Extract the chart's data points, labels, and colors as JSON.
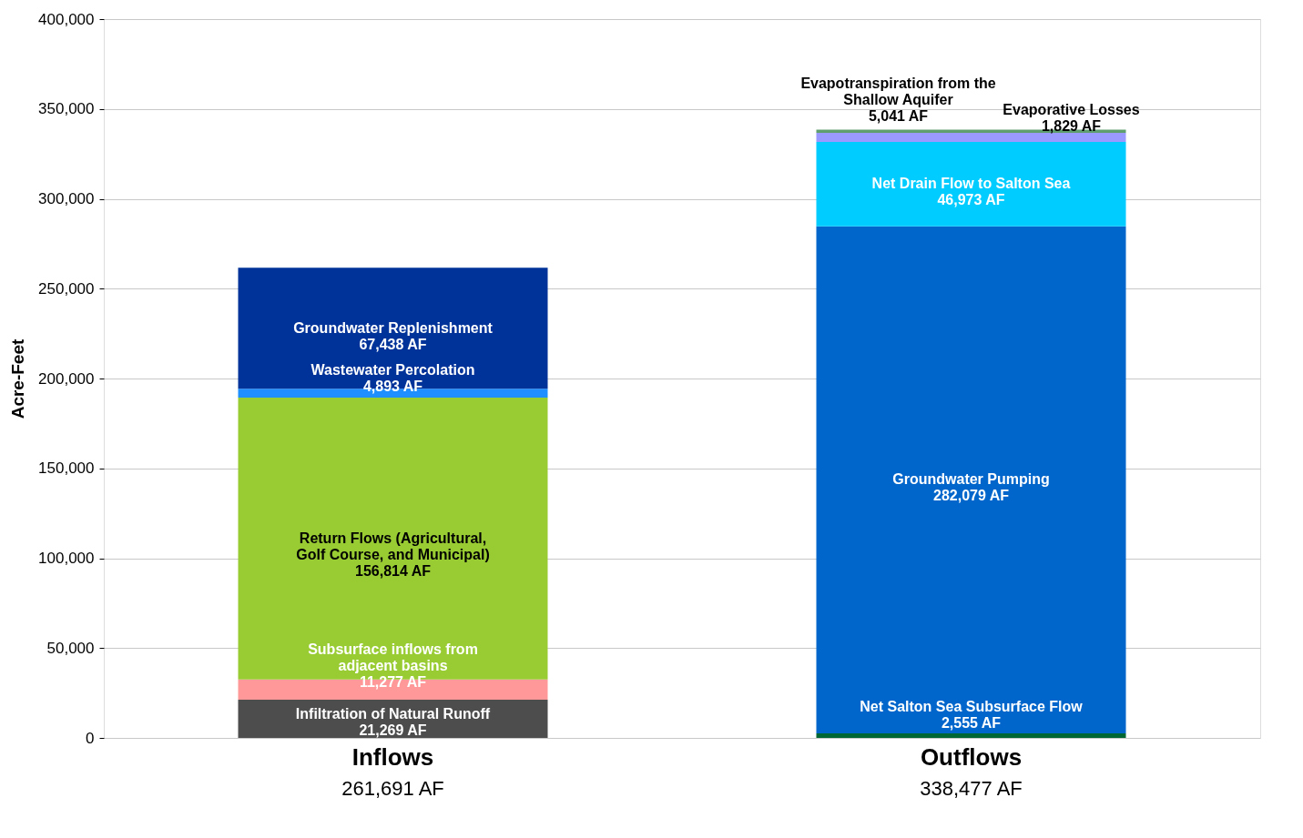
{
  "chart_data": {
    "type": "bar",
    "stacked": true,
    "ylabel": "Acre-Feet",
    "categories": [
      "Inflows",
      "Outflows"
    ],
    "totals": [
      "261,691 AF",
      "338,477 AF"
    ],
    "series": [
      {
        "name": "Infiltration of Natural Runoff",
        "color": "#4d4d4d",
        "values": [
          21269,
          null
        ],
        "value_labels": [
          "21,269 AF",
          null
        ]
      },
      {
        "name": "Subsurface inflows from adjacent basins",
        "color": "#ff9999",
        "values": [
          11277,
          null
        ],
        "value_labels": [
          "11,277 AF",
          null
        ]
      },
      {
        "name": "Return Flows (Agricultural, Golf Course, and Municipal)",
        "color": "#99cc33",
        "values": [
          156814,
          null
        ],
        "value_labels": [
          "156,814 AF",
          null
        ]
      },
      {
        "name": "Wastewater Percolation",
        "color": "#1f8fff",
        "values": [
          4893,
          null
        ],
        "value_labels": [
          "4,893 AF",
          null
        ]
      },
      {
        "name": "Groundwater Replenishment",
        "color": "#003399",
        "values": [
          67438,
          null
        ],
        "value_labels": [
          "67,438 AF",
          null
        ]
      },
      {
        "name": "Net Salton Sea Subsurface Flow",
        "color": "#006633",
        "values": [
          null,
          2555
        ],
        "value_labels": [
          null,
          "2,555 AF"
        ]
      },
      {
        "name": "Groundwater Pumping",
        "color": "#0066cc",
        "values": [
          null,
          282079
        ],
        "value_labels": [
          null,
          "282,079 AF"
        ]
      },
      {
        "name": "Net Drain Flow to Salton Sea",
        "color": "#00ccff",
        "values": [
          null,
          46973
        ],
        "value_labels": [
          null,
          "46,973 AF"
        ]
      },
      {
        "name": "Evapotranspiration from the Shallow Aquifer",
        "color": "#9999ff",
        "values": [
          null,
          5041
        ],
        "value_labels": [
          null,
          "5,041 AF"
        ]
      },
      {
        "name": "Evaporative Losses",
        "color": "#5f9f6f",
        "values": [
          null,
          1829
        ],
        "value_labels": [
          null,
          "1,829 AF"
        ]
      }
    ],
    "ylim": [
      0,
      400000
    ],
    "yticks": [
      0,
      {
        "value": 50000,
        "label": "50,000"
      },
      {
        "value": 100000,
        "label": "100,000"
      },
      {
        "value": 150000,
        "label": "150,000"
      },
      {
        "value": 200000,
        "label": "200,000"
      },
      {
        "value": 250000,
        "label": "250,000"
      },
      {
        "value": 300000,
        "label": "300,000"
      },
      {
        "value": 350000,
        "label": "350,000"
      },
      {
        "value": 400000,
        "label": "400,000"
      }
    ],
    "grid": "y",
    "legend": false
  }
}
